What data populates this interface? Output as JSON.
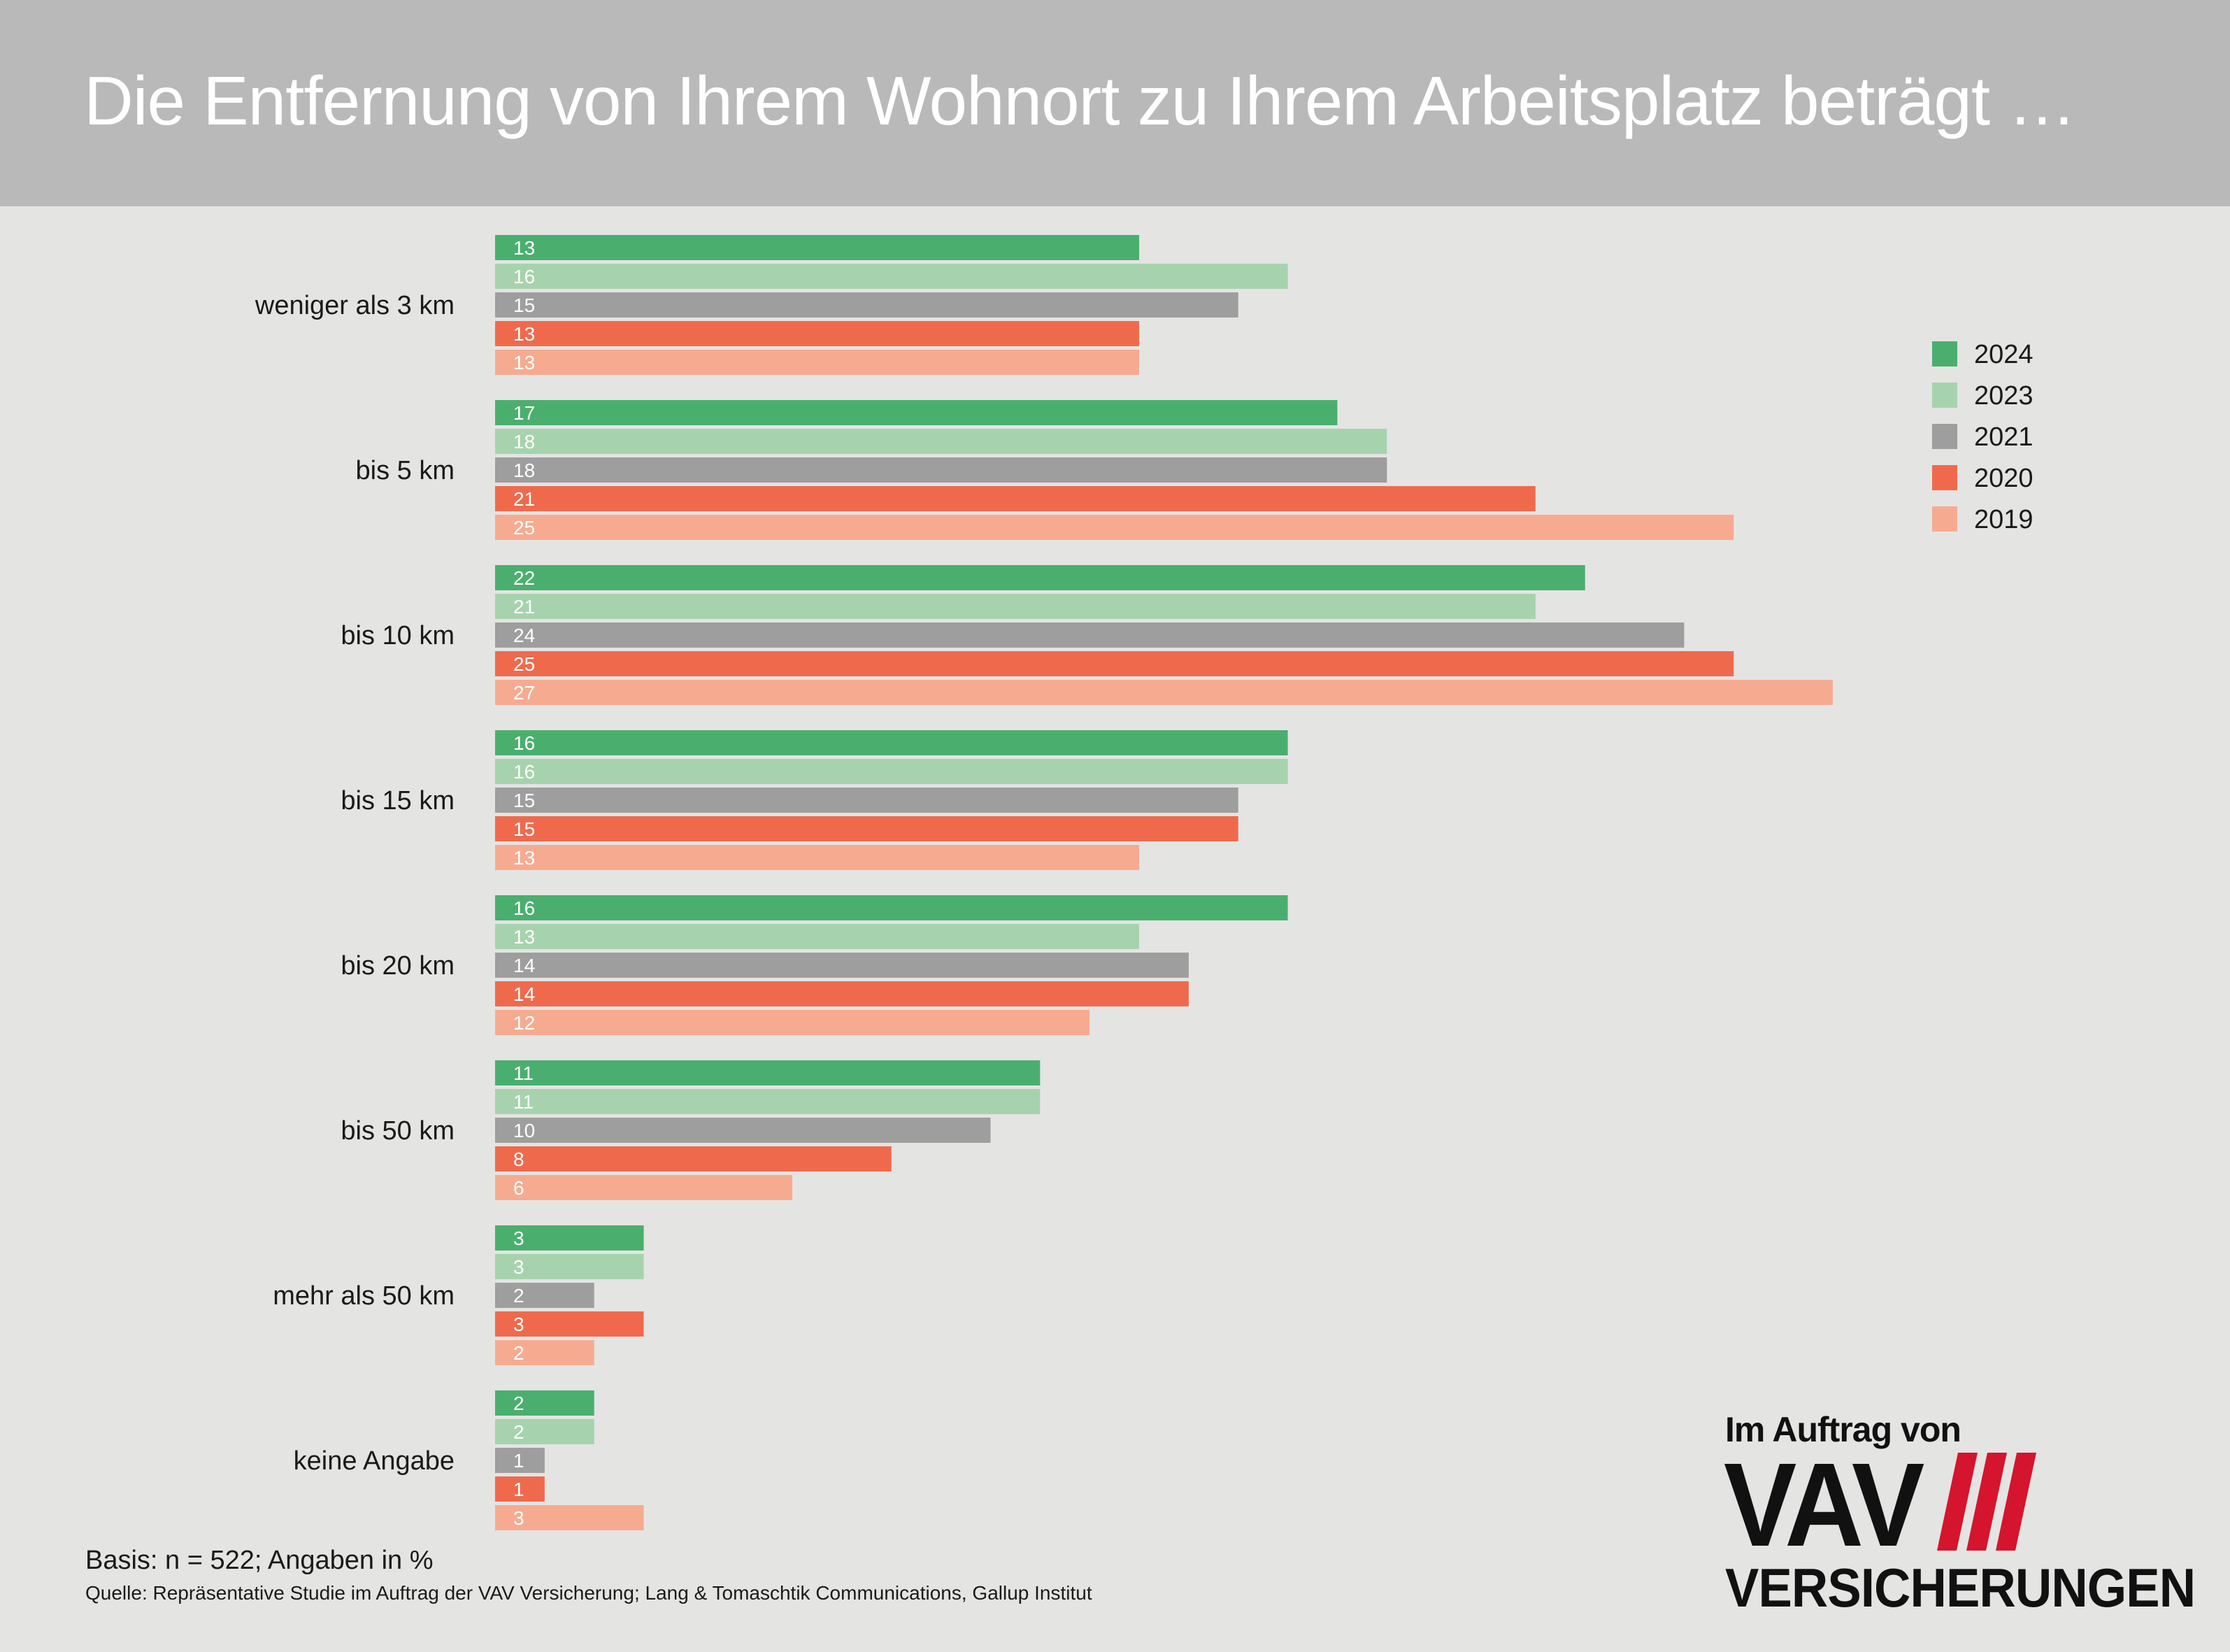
{
  "title": "Die Entfernung von Ihrem Wohnort zu Ihrem Arbeitsplatz beträgt …",
  "footer": {
    "basis": "Basis: n = 522; Angaben in %",
    "source": "Quelle: Repräsentative Studie im Auftrag der VAV Versicherung; Lang & Tomaschtik Communications, Gallup Institut"
  },
  "logo": {
    "top": "Im Auftrag von",
    "main": "VAV",
    "sub": "VERSICHERUNGEN",
    "stripe_color": "#d4152d"
  },
  "chart_data": {
    "type": "bar",
    "orientation": "horizontal",
    "categories": [
      "weniger als 3 km",
      "bis 5 km",
      "bis 10 km",
      "bis 15 km",
      "bis 20 km",
      "bis 50 km",
      "mehr als 50 km",
      "keine Angabe"
    ],
    "series": [
      {
        "name": "2024",
        "color": "#4aaf6e",
        "values": [
          13,
          17,
          22,
          16,
          16,
          11,
          3,
          2
        ]
      },
      {
        "name": "2023",
        "color": "#a6d3ad",
        "values": [
          16,
          18,
          21,
          16,
          13,
          11,
          3,
          2
        ]
      },
      {
        "name": "2021",
        "color": "#9e9e9e",
        "values": [
          15,
          18,
          24,
          15,
          14,
          10,
          2,
          1
        ]
      },
      {
        "name": "2020",
        "color": "#ef6a4d",
        "values": [
          13,
          21,
          25,
          15,
          14,
          8,
          3,
          1
        ]
      },
      {
        "name": "2019",
        "color": "#f6ab90",
        "values": [
          13,
          25,
          27,
          13,
          12,
          6,
          2,
          3
        ]
      }
    ],
    "unit": "%",
    "xlim": [
      0,
      27
    ],
    "grid": false,
    "legend_position": "top-right",
    "data_labels": "inside-left"
  }
}
